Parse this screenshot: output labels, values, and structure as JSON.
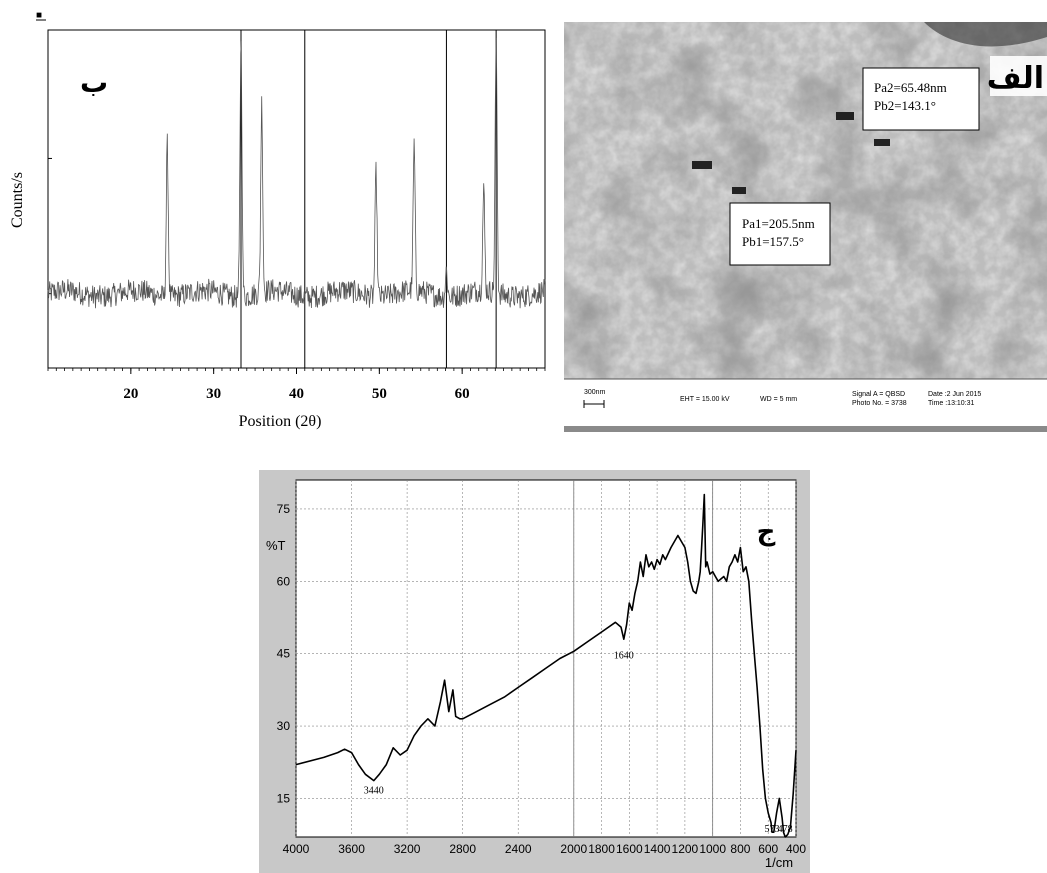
{
  "panels": {
    "xrd": {
      "label": "ب"
    },
    "sem": {
      "label": "الف"
    },
    "ftir": {
      "label": "ج"
    }
  },
  "sem": {
    "annotation_top": {
      "line1": "Pa2=65.48nm",
      "line2": "Pb2=143.1°"
    },
    "annotation_bottom": {
      "line1": "Pa1=205.5nm",
      "line2": "Pb1=157.5°"
    },
    "scalebar_label": "300nm",
    "info": {
      "eht": "EHT = 15.00 kV",
      "wd": "WD =   5 mm",
      "signal": "Signal A = QBSD",
      "photo": "Photo No. = 3738",
      "date": "Date :2 Jun 2015",
      "time": "Time :13:10:31"
    },
    "colors": {
      "image_bg": "#b9b9b9",
      "info_bar": "#ffffff"
    }
  },
  "chart_data": [
    {
      "id": "xrd",
      "type": "line",
      "xlabel": "Position (2θ)",
      "ylabel": "Counts/s",
      "xlim": [
        10,
        70
      ],
      "x_ticks": [
        20,
        30,
        40,
        50,
        60
      ],
      "baseline_level": 0.22,
      "peaks": [
        {
          "x": 24.4,
          "height": 0.67
        },
        {
          "x": 33.3,
          "height": 0.99
        },
        {
          "x": 35.8,
          "height": 0.78
        },
        {
          "x": 49.6,
          "height": 0.59
        },
        {
          "x": 54.2,
          "height": 0.65
        },
        {
          "x": 58.1,
          "height": 0.3
        },
        {
          "x": 62.6,
          "height": 0.52
        },
        {
          "x": 64.1,
          "height": 0.97
        }
      ],
      "line_color": "#555555"
    },
    {
      "id": "ftir",
      "type": "line",
      "xlabel": "1/cm",
      "ylabel": "%T",
      "xlim": [
        4000,
        400
      ],
      "ylim": [
        7,
        81
      ],
      "x_ticks": [
        4000,
        3600,
        3200,
        2800,
        2400,
        2000,
        1800,
        1600,
        1400,
        1200,
        1000,
        800,
        600,
        400
      ],
      "y_ticks": [
        15,
        30,
        45,
        60,
        75
      ],
      "annotations": [
        {
          "text": "3440",
          "x": 3440,
          "y": 16
        },
        {
          "text": "1640",
          "x": 1640,
          "y": 44
        },
        {
          "text": "573",
          "x": 573,
          "y": 8
        },
        {
          "text": "478",
          "x": 478,
          "y": 8
        }
      ],
      "series": [
        {
          "x": [
            4000,
            3800,
            3700,
            3650,
            3600,
            3550,
            3500,
            3440,
            3400,
            3350,
            3300,
            3250,
            3200,
            3150,
            3100,
            3050,
            3000,
            2960,
            2930,
            2900,
            2870,
            2850,
            2820,
            2800,
            2700,
            2600,
            2500,
            2400,
            2300,
            2200,
            2100,
            2000,
            1900,
            1800,
            1700,
            1660,
            1640,
            1620,
            1600,
            1580,
            1560,
            1540,
            1520,
            1500,
            1480,
            1460,
            1440,
            1420,
            1400,
            1380,
            1360,
            1340,
            1300,
            1250,
            1200,
            1180,
            1160,
            1140,
            1120,
            1100,
            1090,
            1080,
            1070,
            1060,
            1050,
            1040,
            1020,
            1000,
            980,
            960,
            940,
            920,
            900,
            880,
            860,
            840,
            820,
            800,
            780,
            760,
            740,
            720,
            700,
            680,
            660,
            640,
            620,
            600,
            580,
            573,
            560,
            540,
            520,
            500,
            490,
            478,
            460,
            440,
            420,
            400
          ],
          "y": [
            22,
            23.5,
            24.5,
            25.2,
            24.5,
            22,
            20,
            18.7,
            20,
            22,
            25.5,
            24,
            25,
            28,
            30,
            31.5,
            30,
            35,
            39.5,
            33,
            37.5,
            32,
            31.5,
            31.5,
            33,
            34.5,
            36,
            38,
            40,
            42,
            44,
            45.5,
            47.5,
            49.5,
            51.5,
            50.5,
            48,
            51,
            55.5,
            54,
            57.5,
            60,
            64,
            61,
            65.5,
            63,
            64,
            62.5,
            64.5,
            63.5,
            65.5,
            64.5,
            67,
            69.5,
            67,
            64,
            60,
            58,
            57.5,
            60,
            62,
            67,
            72,
            78,
            63,
            64,
            61.5,
            62,
            61,
            60,
            60.5,
            61,
            60,
            63,
            64,
            65.5,
            64,
            67,
            62,
            63,
            60,
            52,
            45,
            38,
            30,
            21,
            15,
            12,
            10,
            8,
            8,
            12,
            15,
            11,
            8,
            7,
            7.5,
            9,
            16,
            25
          ]
        }
      ],
      "line_color": "#000000"
    }
  ]
}
